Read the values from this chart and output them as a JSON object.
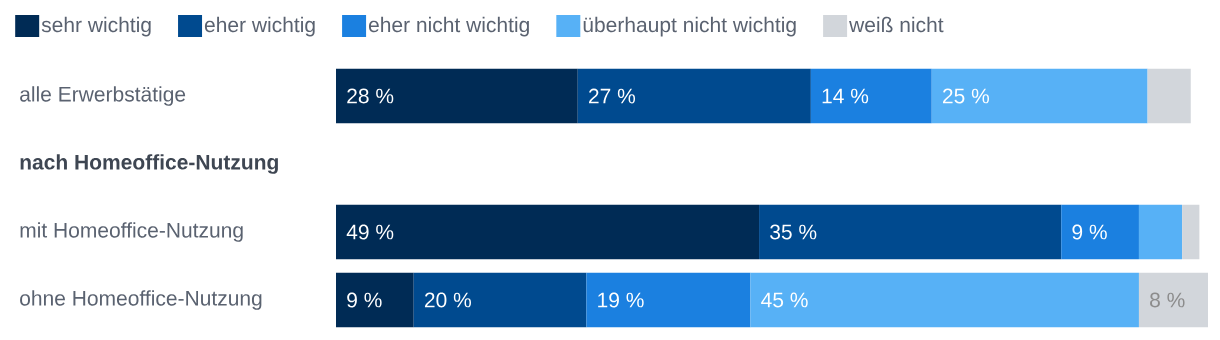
{
  "chart_data": {
    "type": "bar",
    "orientation": "horizontal",
    "stacked": true,
    "legend": "top left",
    "categories": [
      "alle Erwerbstätige",
      "nach Homeoffice-Nutzung",
      "mit Homeoffice-Nutzung",
      "ohne Homeoffice-Nutzung"
    ],
    "series": [
      {
        "name": "sehr wichtig",
        "color": "#002b55",
        "values": [
          28,
          null,
          49,
          9
        ],
        "value_labels": [
          "28 %",
          null,
          "49 %",
          "9 %"
        ]
      },
      {
        "name": "eher wichtig",
        "color": "#004a8f",
        "values": [
          27,
          null,
          35,
          20
        ],
        "value_labels": [
          "27 %",
          null,
          "35 %",
          "20 %"
        ]
      },
      {
        "name": "eher nicht wichtig",
        "color": "#1b80e0",
        "values": [
          14,
          null,
          9,
          19
        ],
        "value_labels": [
          "14 %",
          null,
          "9 %",
          "19 %"
        ]
      },
      {
        "name": "überhaupt nicht wichtig",
        "color": "#57b1f6",
        "values": [
          25,
          null,
          5,
          45
        ],
        "value_labels": [
          "25 %",
          null,
          null,
          "45 %"
        ]
      },
      {
        "name": "weiß nicht",
        "color": "#d2d6db",
        "values": [
          5,
          null,
          2,
          8
        ],
        "value_labels": [
          null,
          null,
          null,
          "8 %"
        ]
      }
    ]
  }
}
